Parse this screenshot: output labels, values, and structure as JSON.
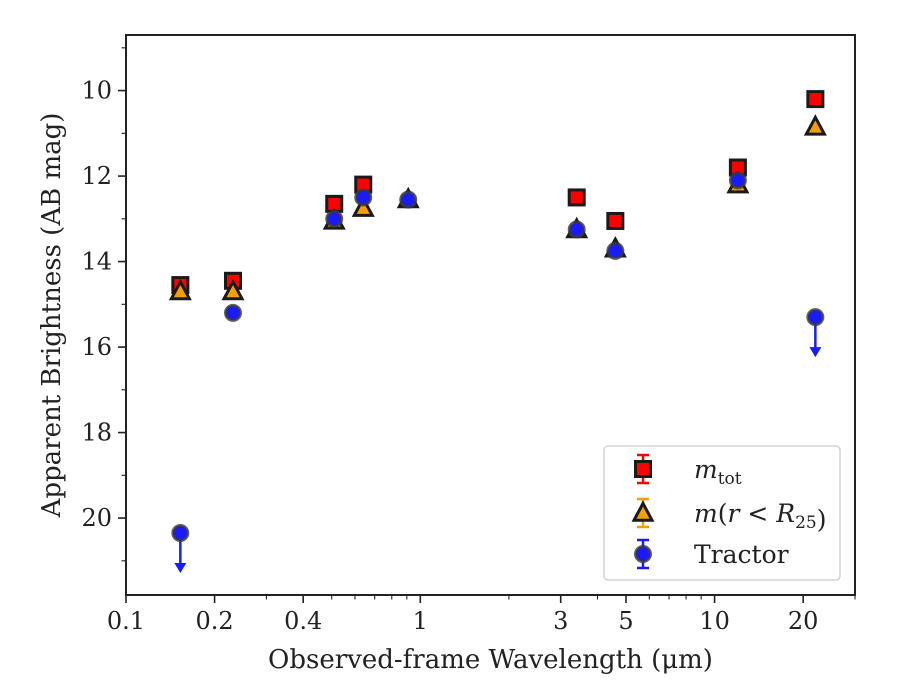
{
  "chart_data": {
    "type": "scatter",
    "xscale": "log",
    "xlim": [
      0.1,
      30
    ],
    "ylim": [
      21.8,
      8.7
    ],
    "y_inverted": true,
    "xlabel": "Observed-frame Wavelength (μm)",
    "ylabel": "Apparent Brightness (AB mag)",
    "xticks": [
      0.1,
      0.2,
      0.4,
      1,
      3,
      5,
      10,
      20
    ],
    "xtick_labels": [
      "0.1",
      "0.2",
      "0.4",
      "1",
      "3",
      "5",
      "10",
      "20"
    ],
    "yticks": [
      10,
      12,
      14,
      16,
      18,
      20
    ],
    "ytick_labels": [
      "10",
      "12",
      "14",
      "16",
      "18",
      "20"
    ],
    "grid": false,
    "legend_position": "lower-right",
    "series": [
      {
        "name": "m_tot",
        "legend_label": "mtot",
        "marker": "square",
        "color": "#ff0000",
        "edge_color": "#1a1a1a",
        "points": [
          {
            "x": 0.153,
            "y": 14.55
          },
          {
            "x": 0.231,
            "y": 14.45
          },
          {
            "x": 0.51,
            "y": 12.65
          },
          {
            "x": 0.64,
            "y": 12.2
          },
          {
            "x": 3.4,
            "y": 12.5
          },
          {
            "x": 4.6,
            "y": 13.05
          },
          {
            "x": 12.0,
            "y": 11.8
          },
          {
            "x": 22.0,
            "y": 10.2
          }
        ]
      },
      {
        "name": "m(r < R25)",
        "legend_label": "m(r < R25)",
        "marker": "triangle",
        "color": "#f5a000",
        "edge_color": "#1a1a1a",
        "points": [
          {
            "x": 0.153,
            "y": 14.7
          },
          {
            "x": 0.231,
            "y": 14.7
          },
          {
            "x": 0.51,
            "y": 13.05
          },
          {
            "x": 0.64,
            "y": 12.75
          },
          {
            "x": 0.91,
            "y": 12.55
          },
          {
            "x": 3.4,
            "y": 13.25
          },
          {
            "x": 4.6,
            "y": 13.7
          },
          {
            "x": 12.0,
            "y": 12.2
          },
          {
            "x": 22.0,
            "y": 10.85
          }
        ]
      },
      {
        "name": "Tractor",
        "legend_label": "Tractor",
        "marker": "circle",
        "color": "#1a1aff",
        "edge_color": "#3a3a3a",
        "points": [
          {
            "x": 0.153,
            "y": 20.35,
            "upper_limit": true
          },
          {
            "x": 0.231,
            "y": 15.2
          },
          {
            "x": 0.51,
            "y": 13.0
          },
          {
            "x": 0.64,
            "y": 12.5
          },
          {
            "x": 0.91,
            "y": 12.55
          },
          {
            "x": 3.4,
            "y": 13.25
          },
          {
            "x": 4.6,
            "y": 13.75
          },
          {
            "x": 12.0,
            "y": 12.1
          },
          {
            "x": 22.0,
            "y": 15.3,
            "upper_limit": true
          }
        ]
      }
    ]
  }
}
